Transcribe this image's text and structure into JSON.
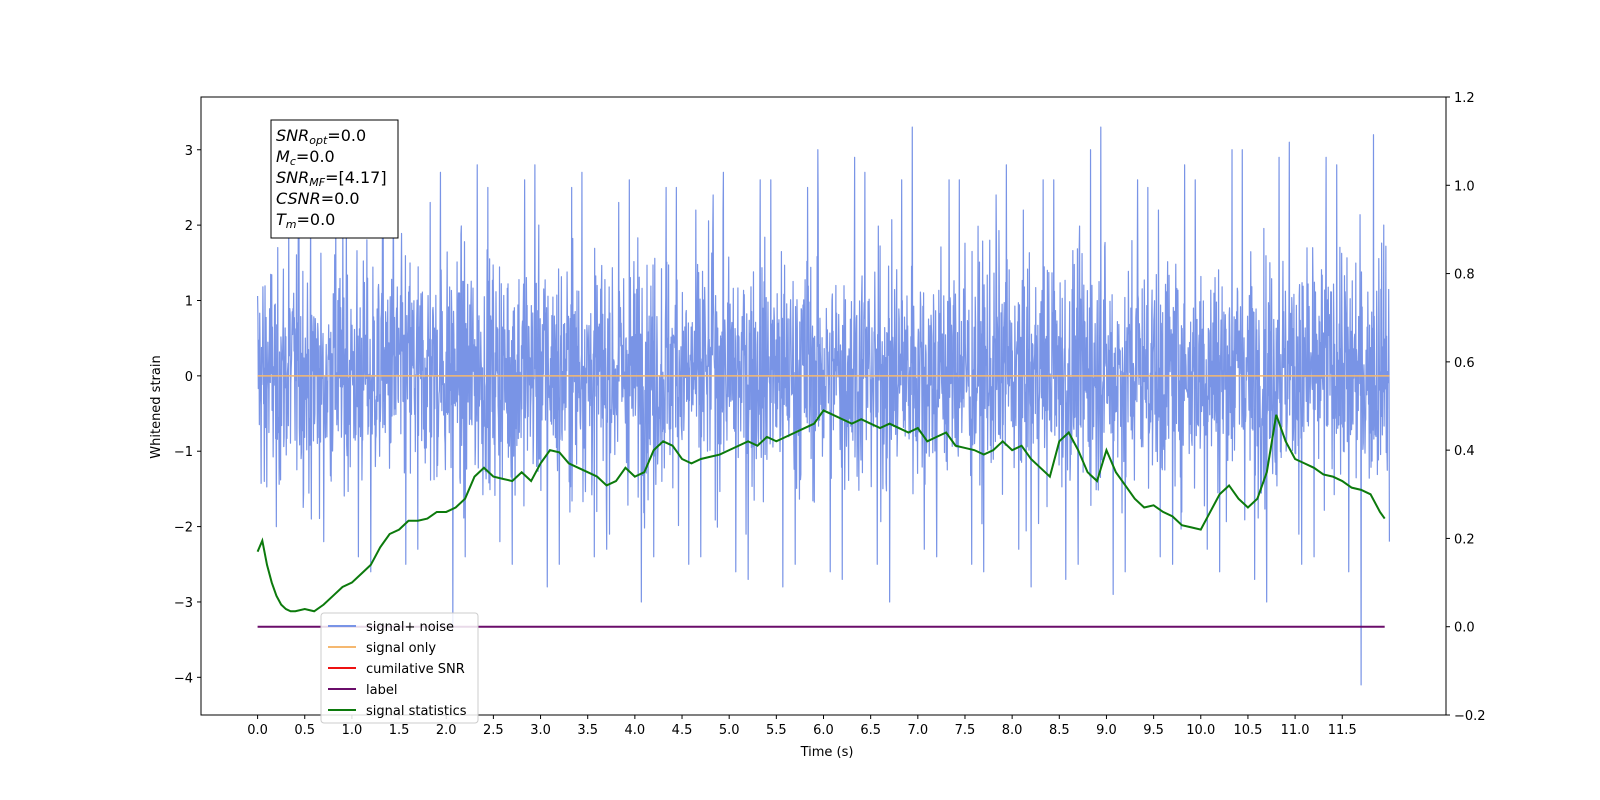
{
  "chart_data": {
    "type": "line",
    "xlabel": "Time (s)",
    "ylabel": "Whitened strain",
    "xlim": [
      -0.6,
      12.6
    ],
    "ylim": [
      -4.5,
      3.7
    ],
    "y2lim": [
      -0.2,
      1.2
    ],
    "x_ticks": [
      "0.0",
      "0.5",
      "1.0",
      "1.5",
      "2.0",
      "2.5",
      "3.0",
      "3.5",
      "4.0",
      "4.5",
      "5.0",
      "5.5",
      "6.0",
      "6.5",
      "7.0",
      "7.5",
      "8.0",
      "8.5",
      "9.0",
      "9.5",
      "10.0",
      "10.5",
      "11.0",
      "11.5"
    ],
    "y_ticks": [
      "3",
      "2",
      "1",
      "0",
      "−1",
      "−2",
      "−3",
      "−4"
    ],
    "y2_ticks": [
      "1.2",
      "1.0",
      "0.8",
      "0.6",
      "0.4",
      "0.2",
      "0.0",
      "−0.2"
    ],
    "grid": false,
    "legend_position": "lower-left",
    "series": [
      {
        "name": "signal+ noise",
        "color": "#7994e6",
        "axis": "left",
        "x_range": [
          0.0,
          12.0
        ],
        "typical_range": [
          -1.9,
          2.0
        ],
        "envelope": {
          "x": [
            0.0,
            0.25,
            0.5,
            0.75,
            1.0,
            1.25,
            1.5,
            1.75,
            2.0,
            2.25,
            2.5,
            2.75,
            3.0,
            3.25,
            3.5,
            3.75,
            4.0,
            4.25,
            4.5,
            4.75,
            5.0,
            5.25,
            5.5,
            5.75,
            6.0,
            6.25,
            6.5,
            6.75,
            7.0,
            7.25,
            7.5,
            7.75,
            8.0,
            8.25,
            8.5,
            8.75,
            9.0,
            9.25,
            9.5,
            9.75,
            10.0,
            10.25,
            10.5,
            10.75,
            11.0,
            11.25,
            11.5,
            11.75,
            12.0
          ],
          "max": [
            2.1,
            2.0,
            2.3,
            2.1,
            2.2,
            2.4,
            2.6,
            2.3,
            2.7,
            2.8,
            2.5,
            2.6,
            2.8,
            2.5,
            2.7,
            2.3,
            2.6,
            2.5,
            2.5,
            2.4,
            2.7,
            2.6,
            2.6,
            2.5,
            3.0,
            2.9,
            2.7,
            2.6,
            3.3,
            2.6,
            2.6,
            2.4,
            2.8,
            2.6,
            2.6,
            3.0,
            3.3,
            2.6,
            2.5,
            2.8,
            2.6,
            3.0,
            3.0,
            2.9,
            3.1,
            2.9,
            2.8,
            3.2,
            2.0
          ],
          "min": [
            -1.4,
            -2.0,
            -1.9,
            -2.2,
            -2.4,
            -2.6,
            -2.5,
            -2.3,
            -3.3,
            -2.4,
            -2.2,
            -2.5,
            -2.8,
            -2.5,
            -2.4,
            -2.3,
            -3.0,
            -2.4,
            -2.5,
            -2.4,
            -2.6,
            -2.7,
            -2.8,
            -2.5,
            -2.6,
            -2.7,
            -2.5,
            -3.0,
            -2.3,
            -2.4,
            -2.5,
            -2.6,
            -2.3,
            -2.8,
            -2.7,
            -2.5,
            -2.9,
            -2.6,
            -2.4,
            -2.5,
            -2.3,
            -2.6,
            -2.7,
            -3.0,
            -2.5,
            -2.4,
            -2.6,
            -4.1,
            -2.2
          ]
        }
      },
      {
        "name": "signal only",
        "color": "#f5b870",
        "axis": "left",
        "x": [
          0.0,
          12.0
        ],
        "y": [
          0.0,
          0.0
        ]
      },
      {
        "name": "cumilative SNR",
        "color": "#ee1111",
        "axis": "right",
        "x": [],
        "y": []
      },
      {
        "name": "label",
        "color": "#6a0d6a",
        "axis": "right",
        "x": [
          0.0,
          11.95
        ],
        "y": [
          0.0,
          0.0
        ]
      },
      {
        "name": "signal statistics",
        "color": "#0c7a0c",
        "axis": "right",
        "x": [
          0.0,
          0.05,
          0.1,
          0.15,
          0.2,
          0.25,
          0.3,
          0.35,
          0.4,
          0.5,
          0.6,
          0.7,
          0.8,
          0.9,
          1.0,
          1.1,
          1.2,
          1.3,
          1.4,
          1.5,
          1.6,
          1.7,
          1.8,
          1.9,
          2.0,
          2.1,
          2.2,
          2.3,
          2.4,
          2.5,
          2.6,
          2.7,
          2.8,
          2.9,
          3.0,
          3.1,
          3.2,
          3.3,
          3.4,
          3.5,
          3.6,
          3.7,
          3.8,
          3.9,
          4.0,
          4.1,
          4.2,
          4.3,
          4.4,
          4.5,
          4.6,
          4.7,
          4.8,
          4.9,
          5.0,
          5.1,
          5.2,
          5.3,
          5.4,
          5.5,
          5.6,
          5.7,
          5.8,
          5.9,
          6.0,
          6.1,
          6.2,
          6.3,
          6.4,
          6.5,
          6.6,
          6.7,
          6.8,
          6.9,
          7.0,
          7.1,
          7.2,
          7.3,
          7.4,
          7.5,
          7.6,
          7.7,
          7.8,
          7.9,
          8.0,
          8.1,
          8.2,
          8.3,
          8.4,
          8.5,
          8.6,
          8.7,
          8.8,
          8.9,
          9.0,
          9.1,
          9.2,
          9.3,
          9.4,
          9.5,
          9.6,
          9.7,
          9.8,
          9.9,
          10.0,
          10.1,
          10.2,
          10.3,
          10.4,
          10.5,
          10.6,
          10.7,
          10.8,
          10.9,
          11.0,
          11.1,
          11.2,
          11.3,
          11.4,
          11.5,
          11.6,
          11.7,
          11.8,
          11.9,
          11.95
        ],
        "y": [
          0.17,
          0.195,
          0.14,
          0.1,
          0.07,
          0.05,
          0.04,
          0.035,
          0.035,
          0.04,
          0.035,
          0.05,
          0.07,
          0.09,
          0.1,
          0.12,
          0.14,
          0.18,
          0.21,
          0.22,
          0.24,
          0.24,
          0.245,
          0.26,
          0.26,
          0.27,
          0.29,
          0.34,
          0.36,
          0.34,
          0.335,
          0.33,
          0.35,
          0.33,
          0.37,
          0.4,
          0.395,
          0.37,
          0.36,
          0.35,
          0.34,
          0.32,
          0.33,
          0.36,
          0.34,
          0.35,
          0.4,
          0.42,
          0.41,
          0.38,
          0.37,
          0.38,
          0.385,
          0.39,
          0.4,
          0.41,
          0.42,
          0.41,
          0.43,
          0.42,
          0.43,
          0.44,
          0.45,
          0.46,
          0.49,
          0.48,
          0.47,
          0.46,
          0.47,
          0.46,
          0.45,
          0.46,
          0.45,
          0.44,
          0.45,
          0.42,
          0.43,
          0.44,
          0.41,
          0.405,
          0.4,
          0.39,
          0.4,
          0.42,
          0.4,
          0.41,
          0.38,
          0.36,
          0.34,
          0.42,
          0.44,
          0.4,
          0.35,
          0.33,
          0.4,
          0.35,
          0.32,
          0.29,
          0.27,
          0.275,
          0.26,
          0.25,
          0.23,
          0.225,
          0.22,
          0.26,
          0.3,
          0.32,
          0.29,
          0.27,
          0.29,
          0.35,
          0.48,
          0.42,
          0.38,
          0.37,
          0.36,
          0.345,
          0.34,
          0.33,
          0.315,
          0.31,
          0.3,
          0.26,
          0.245
        ]
      }
    ],
    "annotations": [
      {
        "base": "SNR",
        "sub": "opt",
        "value": "=0.0"
      },
      {
        "base": "M",
        "sub": "c",
        "value": "=0.0"
      },
      {
        "base": "SNR",
        "sub": "MF",
        "value": "=[4.17]"
      },
      {
        "base": "CSNR",
        "sub": "",
        "value": "=0.0"
      },
      {
        "base": "T",
        "sub": "m",
        "value": "=0.0"
      }
    ],
    "legend": [
      {
        "label": "signal+ noise",
        "color": "#7994e6"
      },
      {
        "label": "signal only",
        "color": "#f5b870"
      },
      {
        "label": "cumilative SNR",
        "color": "#ee1111"
      },
      {
        "label": "label",
        "color": "#6a0d6a"
      },
      {
        "label": "signal statistics",
        "color": "#0c7a0c"
      }
    ]
  }
}
